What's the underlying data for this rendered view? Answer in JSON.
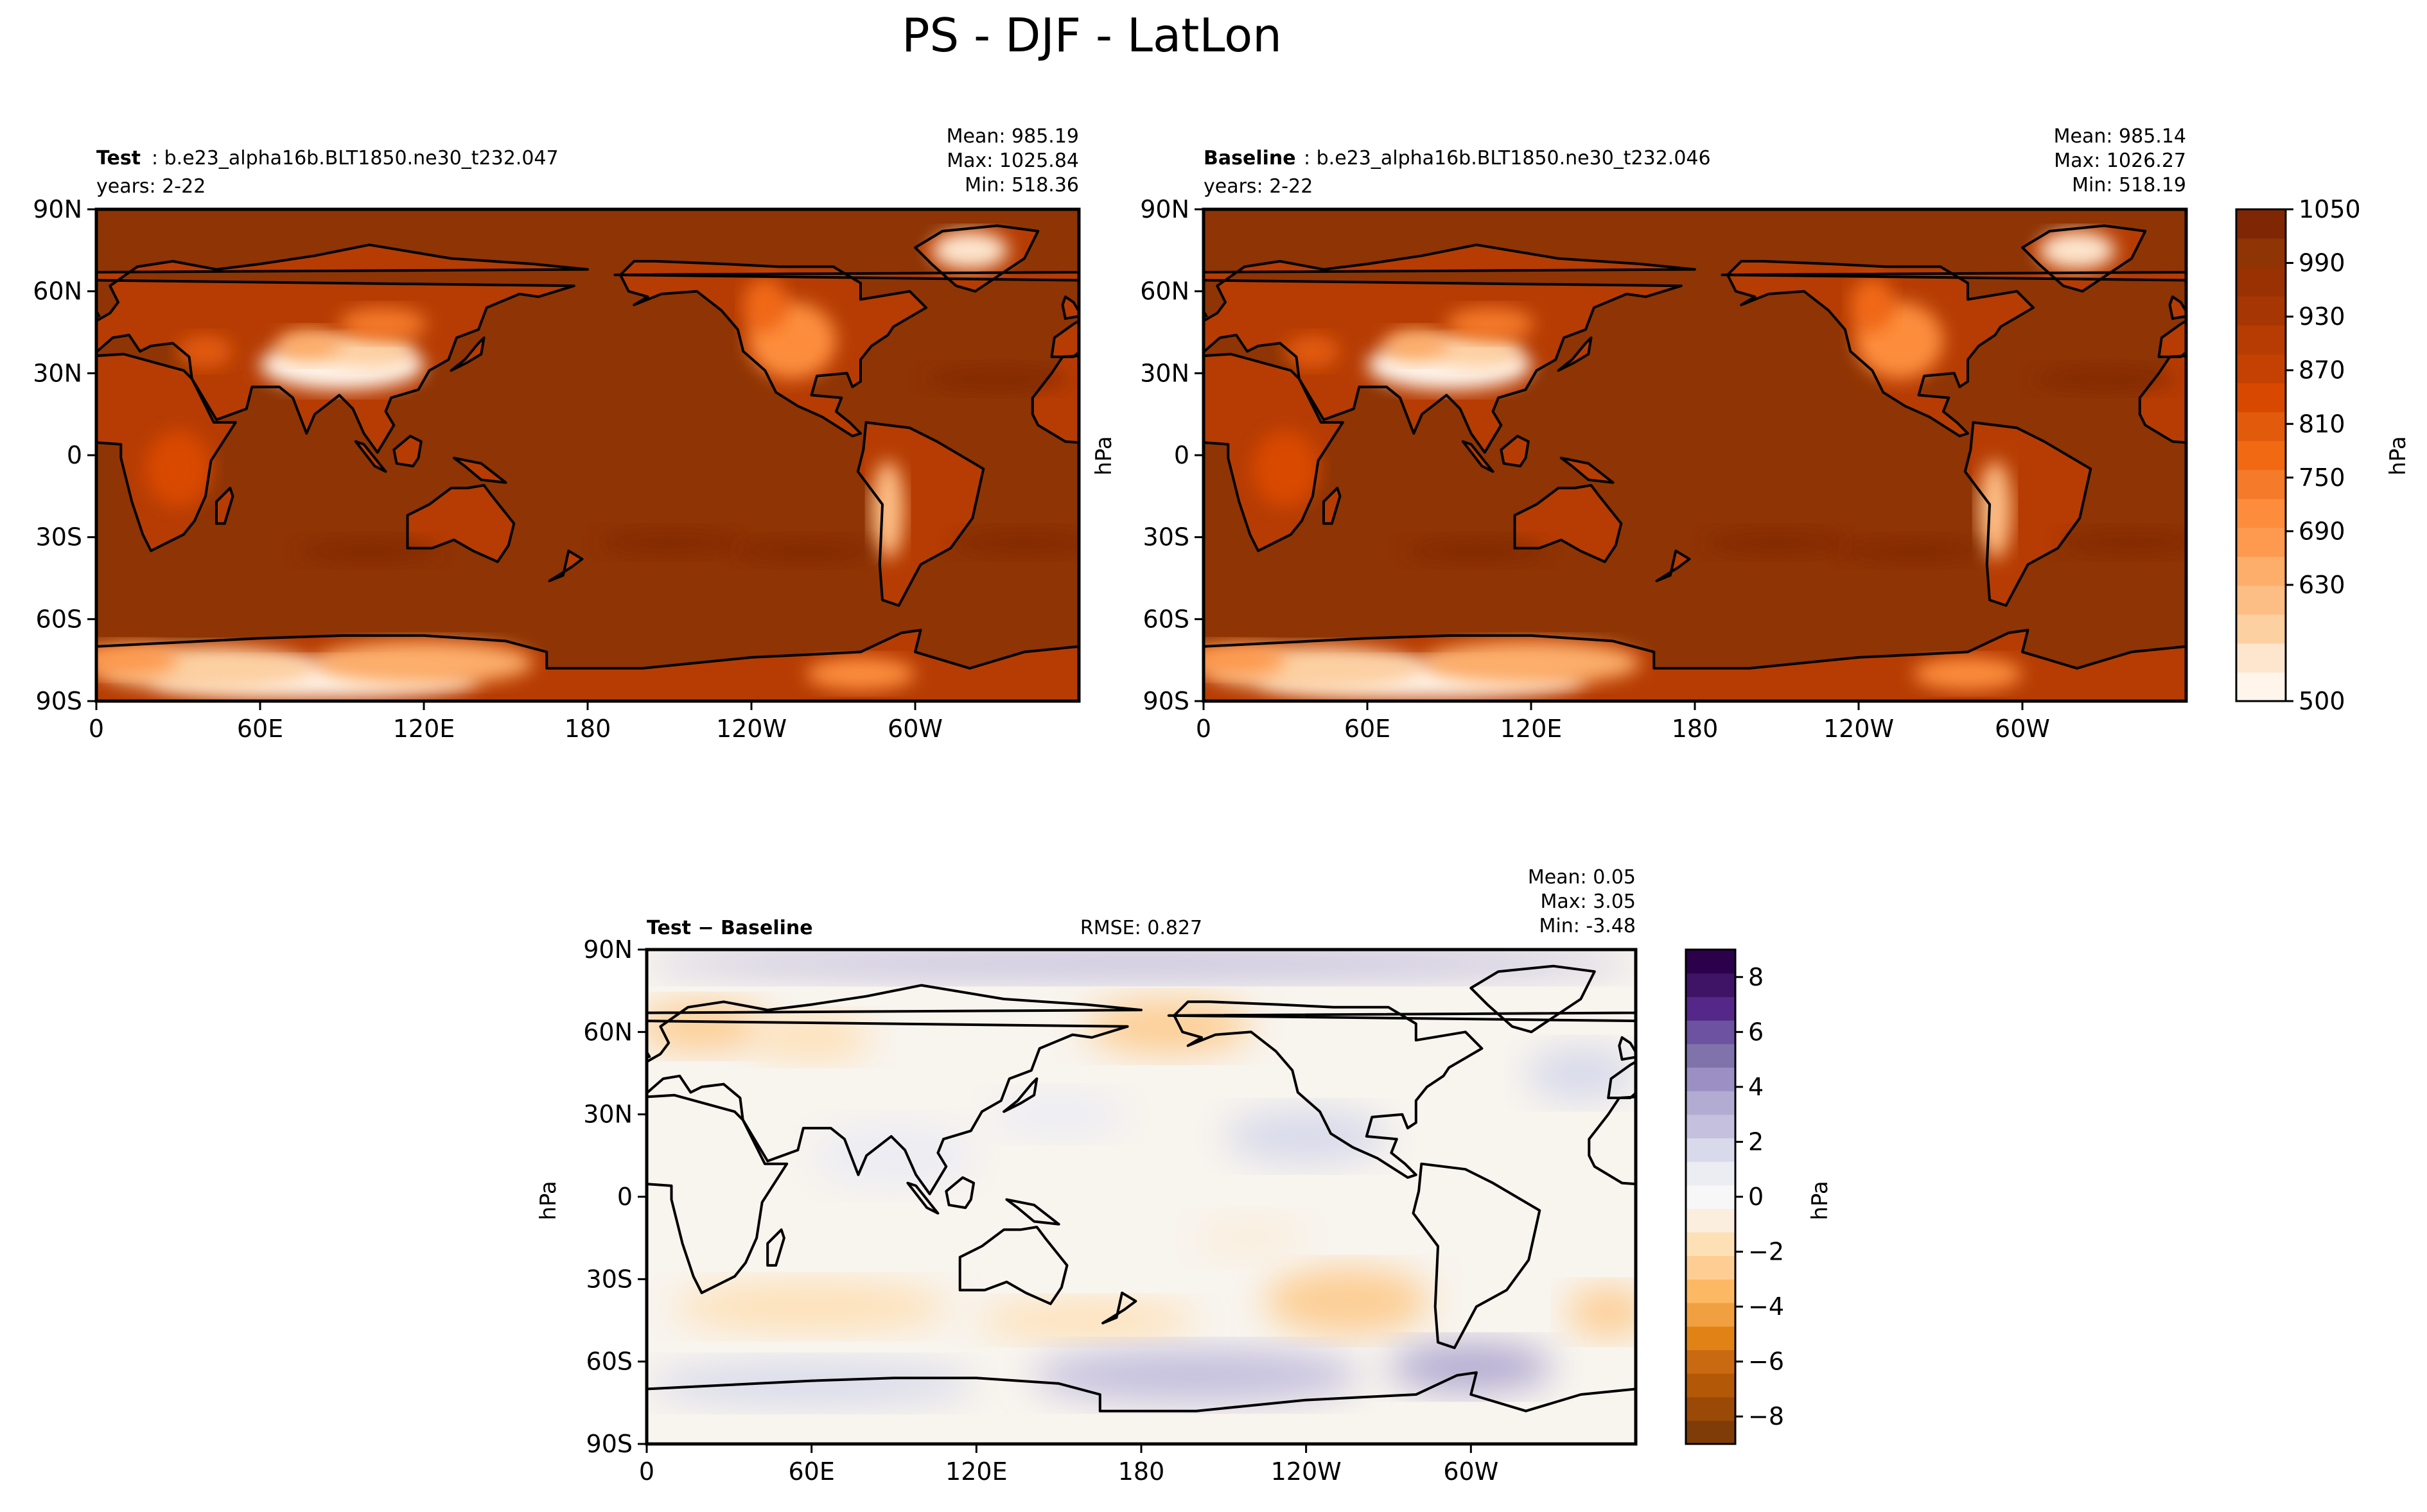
{
  "figure_title": "PS - DJF - LatLon",
  "colors": {
    "ocean_test": "#8f3404",
    "ocean_anom": "#f8f4ee",
    "coast": "#000000"
  },
  "chart_data": [
    {
      "type": "heatmap",
      "panel": "test",
      "label_bold": "Test",
      "label_rest": ": b.e23_alpha16b.BLT1850.ne30_t232.047",
      "years": "years: 2-22",
      "stats": [
        "Mean: 985.19",
        "Max: 1025.84",
        "Min: 518.36"
      ],
      "x_ticks": [
        "0",
        "60E",
        "120E",
        "180",
        "120W",
        "60W"
      ],
      "y_ticks": [
        "90N",
        "60N",
        "30N",
        "0",
        "30S",
        "60S",
        "90S"
      ],
      "xlim": [
        0,
        360
      ],
      "ylim": [
        -90,
        90
      ]
    },
    {
      "type": "heatmap",
      "panel": "baseline",
      "label_bold": "Baseline",
      "label_rest": ": b.e23_alpha16b.BLT1850.ne30_t232.046",
      "years": "years: 2-22",
      "stats": [
        "Mean: 985.14",
        "Max: 1026.27",
        "Min: 518.19"
      ],
      "ylabel": "hPa",
      "x_ticks": [
        "0",
        "60E",
        "120E",
        "180",
        "120W",
        "60W"
      ],
      "y_ticks": [
        "90N",
        "60N",
        "30N",
        "0",
        "30S",
        "60S",
        "90S"
      ],
      "xlim": [
        0,
        360
      ],
      "ylim": [
        -90,
        90
      ],
      "colorbar": {
        "label": "hPa",
        "range": [
          500,
          1050
        ],
        "ticks": [
          "1050",
          "990",
          "930",
          "870",
          "810",
          "750",
          "690",
          "630",
          "500"
        ],
        "colors": [
          "#fff5eb",
          "#fee6ce",
          "#fdd0a2",
          "#fdbe85",
          "#fdae6b",
          "#fd9a4f",
          "#fd8d3c",
          "#f57a2a",
          "#f16913",
          "#e25a0b",
          "#d94801",
          "#c44103",
          "#b63c03",
          "#a63603",
          "#993103",
          "#8f3404",
          "#7f2704"
        ]
      }
    },
    {
      "type": "heatmap",
      "panel": "difference",
      "label": "Test − Baseline",
      "rmse": "RMSE: 0.827",
      "stats": [
        "Mean:  0.05",
        "Max:  3.05",
        "Min: -3.48"
      ],
      "ylabel": "hPa",
      "x_ticks": [
        "0",
        "60E",
        "120E",
        "180",
        "120W",
        "60W"
      ],
      "y_ticks": [
        "90N",
        "60N",
        "30N",
        "0",
        "30S",
        "60S",
        "90S"
      ],
      "xlim": [
        0,
        360
      ],
      "ylim": [
        -90,
        90
      ],
      "colorbar": {
        "label": "hPa",
        "range": [
          -9,
          9
        ],
        "ticks": [
          "8",
          "6",
          "4",
          "2",
          "0",
          "−2",
          "−4",
          "−6",
          "−8"
        ],
        "colors": [
          "#7f3b08",
          "#9a4a06",
          "#b35806",
          "#c96a12",
          "#e08214",
          "#f0a040",
          "#fdb863",
          "#fdcd93",
          "#fee0b6",
          "#fbeede",
          "#f7f7f7",
          "#ececf3",
          "#d8daeb",
          "#c4c0de",
          "#b2abd2",
          "#9b8fc4",
          "#8073ac",
          "#6c52a0",
          "#542788",
          "#3f1466",
          "#2d004b"
        ]
      }
    }
  ]
}
